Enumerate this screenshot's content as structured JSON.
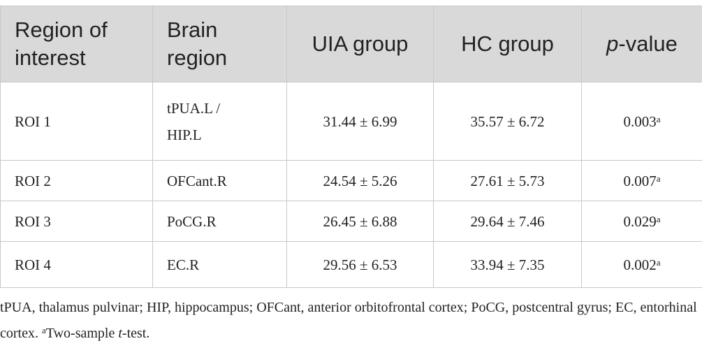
{
  "table": {
    "headers": [
      "Region of interest",
      "Brain region",
      "UIA group",
      "HC group",
      {
        "italic": "p",
        "text": "-value"
      }
    ],
    "rows": [
      {
        "roi": "ROI 1",
        "region": "tPUA.L / HIP.L",
        "uia": "31.44 ± 6.99",
        "hc": "35.57 ± 6.72",
        "p": "0.003",
        "note": "a"
      },
      {
        "roi": "ROI 2",
        "region": "OFCant.R",
        "uia": "24.54 ± 5.26",
        "hc": "27.61 ± 5.73",
        "p": "0.007",
        "note": "a"
      },
      {
        "roi": "ROI 3",
        "region": "PoCG.R",
        "uia": "26.45 ± 6.88",
        "hc": "29.64 ± 7.46",
        "p": "0.029",
        "note": "a"
      },
      {
        "roi": "ROI 4",
        "region": "EC.R",
        "uia": "29.56 ± 6.53",
        "hc": "33.94 ± 7.35",
        "p": "0.002",
        "note": "a"
      }
    ]
  },
  "footnote": {
    "text": "tPUA, thalamus pulvinar; HIP, hippocampus; OFCant, anterior orbitofrontal cortex; PoCG, postcentral gyrus; EC, entorhinal cortex. ",
    "mark": "a",
    "test": "Two-sample ",
    "italic": "t",
    "end": "-test."
  }
}
